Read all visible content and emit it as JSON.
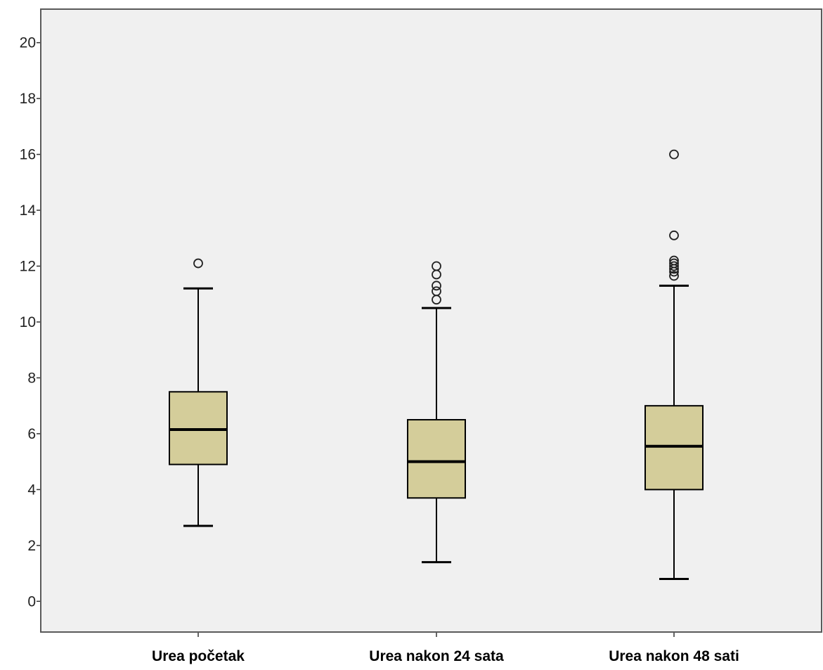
{
  "chart_data": {
    "type": "boxplot",
    "title": "",
    "xlabel": "",
    "ylabel": "",
    "ylim": [
      -1.1,
      21.2
    ],
    "yticks": [
      "0",
      "2",
      "4",
      "6",
      "8",
      "10",
      "12",
      "14",
      "16",
      "18",
      "20"
    ],
    "grid": false,
    "legend": "none",
    "categories": [
      "Urea početak",
      "Urea nakon 24 sata",
      "Urea nakon 48 sati"
    ],
    "series": [
      {
        "whisker_low": 2.7,
        "q1": 4.9,
        "median": 6.15,
        "q3": 7.5,
        "whisker_high": 11.2,
        "outliers": [
          12.1
        ]
      },
      {
        "whisker_low": 1.4,
        "q1": 3.7,
        "median": 5.0,
        "q3": 6.5,
        "whisker_high": 10.5,
        "outliers": [
          10.8,
          11.1,
          11.3,
          11.7,
          12.0
        ]
      },
      {
        "whisker_low": 0.8,
        "q1": 4.0,
        "median": 5.55,
        "q3": 7.0,
        "whisker_high": 11.3,
        "outliers": [
          11.65,
          11.8,
          11.9,
          12.0,
          12.1,
          12.2,
          13.1,
          16.0
        ]
      }
    ],
    "colors": {
      "plot_bg": "#f0f0f0",
      "box_fill": "#d4cd9a",
      "line": "#000000",
      "frame": "#5a5a5a"
    }
  }
}
